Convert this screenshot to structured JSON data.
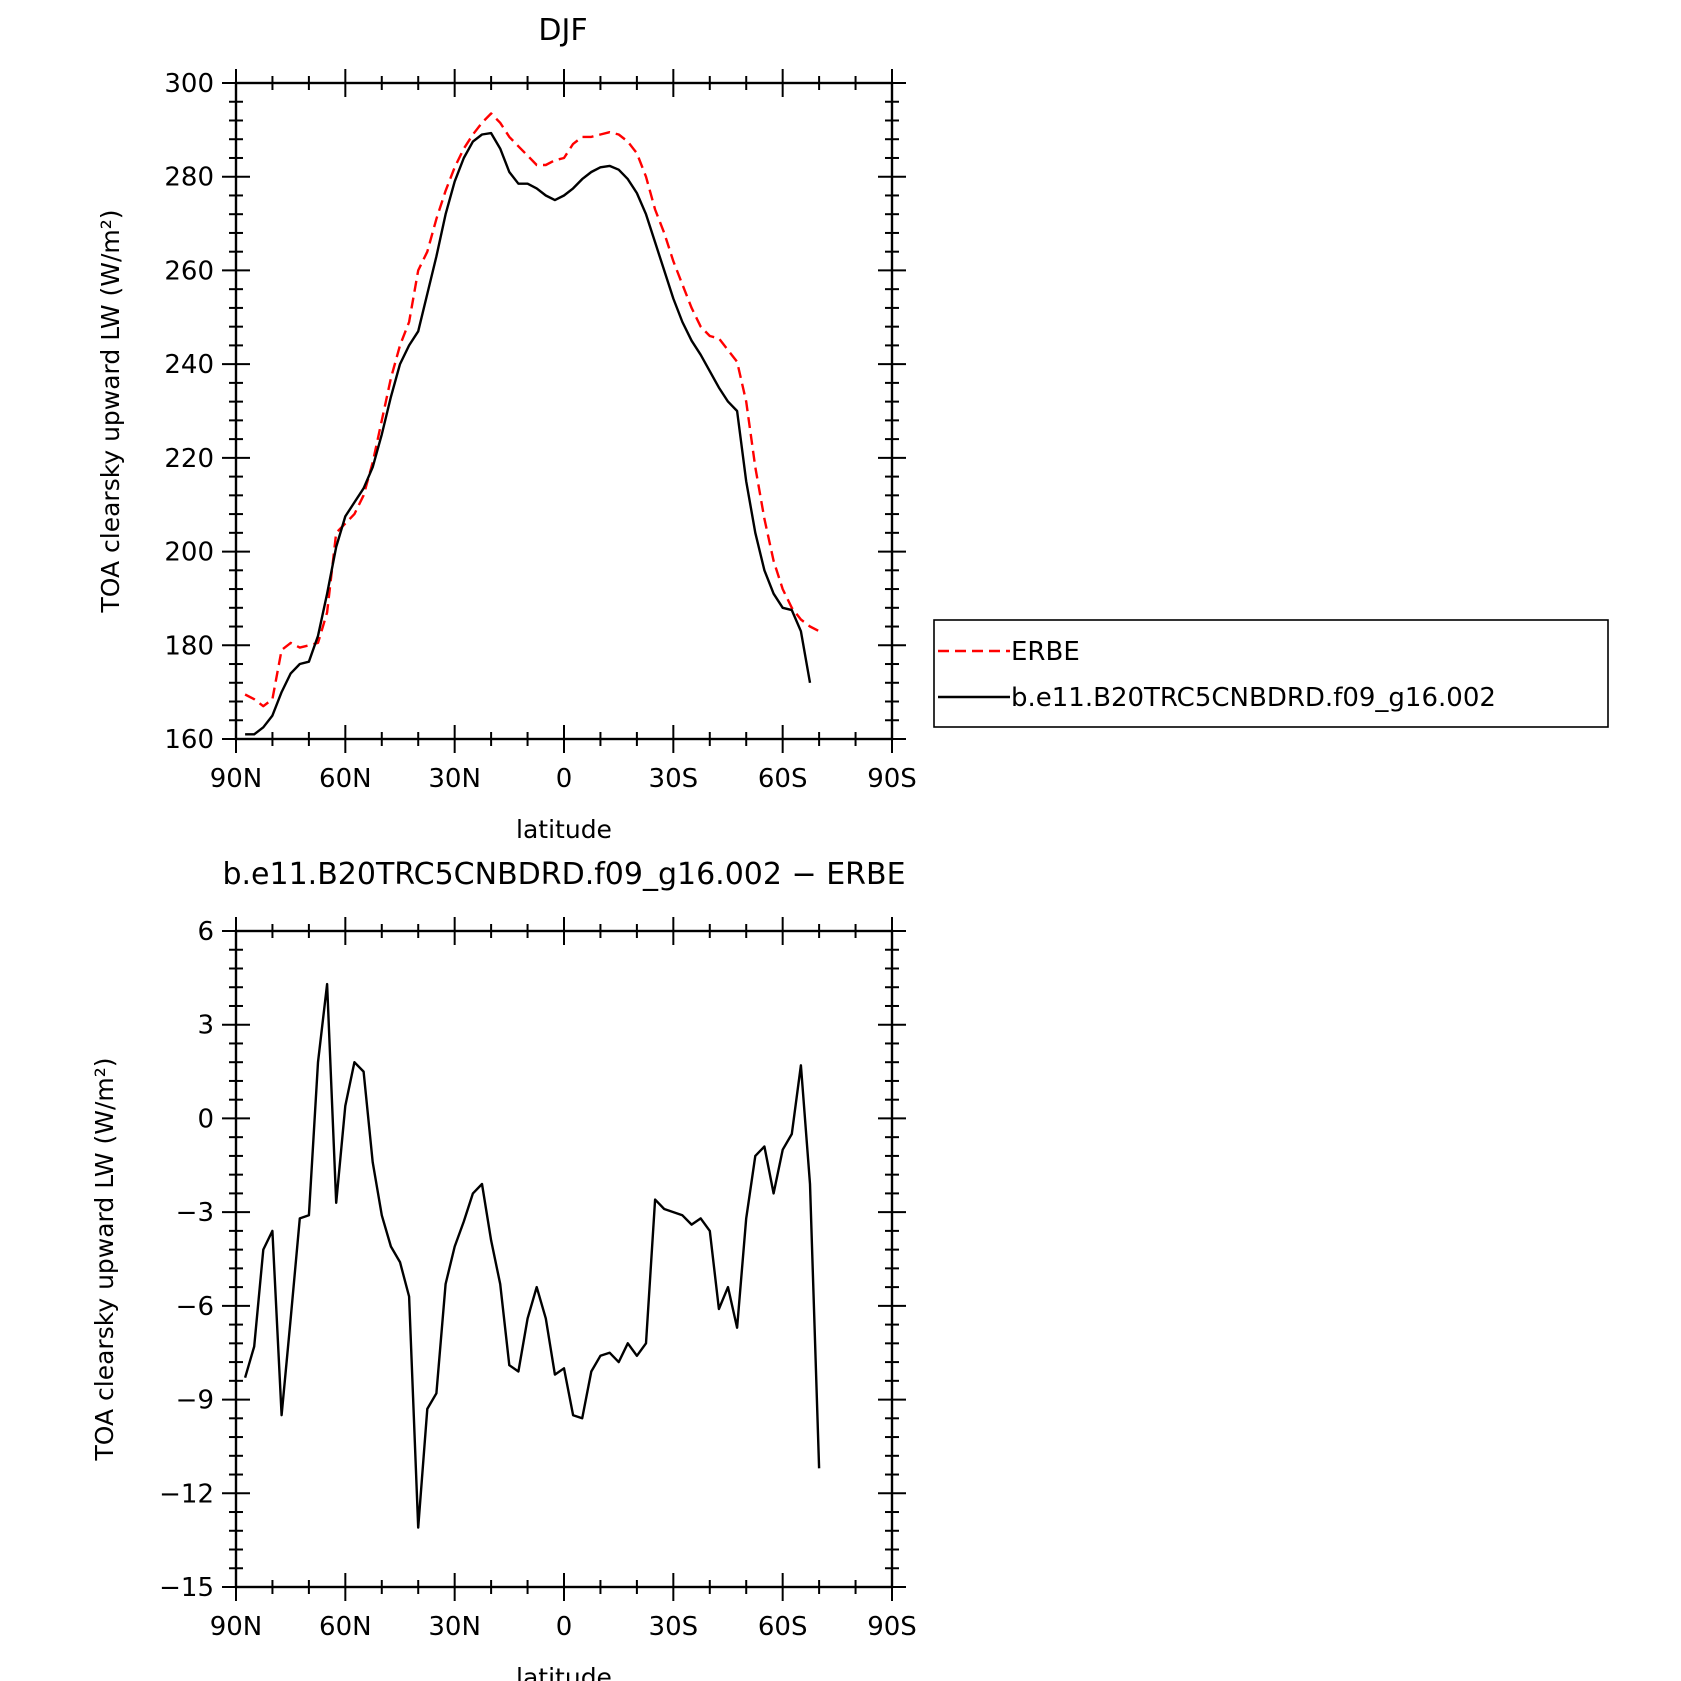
{
  "chart_data": [
    {
      "type": "line",
      "title": "DJF",
      "xlabel": "latitude",
      "ylabel": "TOA clearsky upward LW (W/m²)",
      "xlim": [
        90,
        -90
      ],
      "ylim": [
        160,
        300
      ],
      "yticks": [
        160,
        180,
        200,
        220,
        240,
        260,
        280,
        300
      ],
      "xticks": [
        {
          "value": 90,
          "label": "90N"
        },
        {
          "value": 60,
          "label": "60N"
        },
        {
          "value": 30,
          "label": "30N"
        },
        {
          "value": 0,
          "label": "0"
        },
        {
          "value": -30,
          "label": "30S"
        },
        {
          "value": -60,
          "label": "60S"
        },
        {
          "value": -90,
          "label": "90S"
        }
      ],
      "legend_position": "right",
      "series": [
        {
          "name": "ERBE",
          "color": "#ff0000",
          "dash": "dashed",
          "points": [
            [
              87.5,
              169.5
            ],
            [
              85,
              168.5
            ],
            [
              82.5,
              167
            ],
            [
              80,
              168.5
            ],
            [
              77.5,
              179
            ],
            [
              75,
              180.5
            ],
            [
              72.5,
              179.5
            ],
            [
              70,
              180
            ],
            [
              67.5,
              180.5
            ],
            [
              65,
              187
            ],
            [
              62.5,
              204
            ],
            [
              60,
              206
            ],
            [
              57.5,
              208
            ],
            [
              55,
              212
            ],
            [
              52.5,
              219
            ],
            [
              50,
              228
            ],
            [
              47.5,
              237
            ],
            [
              45,
              244
            ],
            [
              42.5,
              249
            ],
            [
              40,
              260
            ],
            [
              37.5,
              264
            ],
            [
              35,
              271
            ],
            [
              32.5,
              277
            ],
            [
              30,
              282
            ],
            [
              27.5,
              286
            ],
            [
              25,
              289
            ],
            [
              22.5,
              291.5
            ],
            [
              20,
              293.5
            ],
            [
              17.5,
              291.5
            ],
            [
              15,
              288.5
            ],
            [
              12.5,
              286.5
            ],
            [
              10,
              284.5
            ],
            [
              7.5,
              282.5
            ],
            [
              5,
              282.5
            ],
            [
              2.5,
              283.5
            ],
            [
              0,
              284
            ],
            [
              -2.5,
              287
            ],
            [
              -5,
              288.5
            ],
            [
              -7.5,
              288.5
            ],
            [
              -10,
              289
            ],
            [
              -12.5,
              289.5
            ],
            [
              -15,
              289
            ],
            [
              -17.5,
              287.5
            ],
            [
              -20,
              285
            ],
            [
              -22.5,
              280
            ],
            [
              -25,
              273
            ],
            [
              -27.5,
              268
            ],
            [
              -30,
              262
            ],
            [
              -32.5,
              257
            ],
            [
              -35,
              252
            ],
            [
              -37.5,
              248
            ],
            [
              -40,
              246
            ],
            [
              -42.5,
              245.5
            ],
            [
              -45,
              243
            ],
            [
              -47.5,
              240.5
            ],
            [
              -50,
              232
            ],
            [
              -52.5,
              218
            ],
            [
              -55,
              207
            ],
            [
              -57.5,
              198
            ],
            [
              -60,
              192
            ],
            [
              -62.5,
              188
            ],
            [
              -65,
              185.5
            ],
            [
              -67.5,
              184
            ],
            [
              -70,
              183
            ]
          ]
        },
        {
          "name": "b.e11.B20TRC5CNBDRD.f09_g16.002",
          "color": "#000000",
          "dash": "solid",
          "points": [
            [
              87.5,
              161
            ],
            [
              85,
              161
            ],
            [
              82.5,
              162.5
            ],
            [
              80,
              165
            ],
            [
              77.5,
              170
            ],
            [
              75,
              174
            ],
            [
              72.5,
              176
            ],
            [
              70,
              176.5
            ],
            [
              67.5,
              182
            ],
            [
              65,
              191
            ],
            [
              62.5,
              201
            ],
            [
              60,
              207.5
            ],
            [
              57.5,
              210.5
            ],
            [
              55,
              213.5
            ],
            [
              52.5,
              218
            ],
            [
              50,
              225
            ],
            [
              47.5,
              233
            ],
            [
              45,
              240
            ],
            [
              42.5,
              244
            ],
            [
              40,
              247
            ],
            [
              37.5,
              255
            ],
            [
              35,
              263
            ],
            [
              32.5,
              272
            ],
            [
              30,
              279
            ],
            [
              27.5,
              284
            ],
            [
              25,
              287.5
            ],
            [
              22.5,
              289
            ],
            [
              20,
              289.3
            ],
            [
              17.5,
              286
            ],
            [
              15,
              281
            ],
            [
              12.5,
              278.5
            ],
            [
              10,
              278.5
            ],
            [
              7.5,
              277.5
            ],
            [
              5,
              276
            ],
            [
              2.5,
              275
            ],
            [
              0,
              276
            ],
            [
              -2.5,
              277.5
            ],
            [
              -5,
              279.5
            ],
            [
              -7.5,
              281
            ],
            [
              -10,
              282
            ],
            [
              -12.5,
              282.3
            ],
            [
              -15,
              281.5
            ],
            [
              -17.5,
              279.5
            ],
            [
              -20,
              276.5
            ],
            [
              -22.5,
              272
            ],
            [
              -25,
              266
            ],
            [
              -27.5,
              260
            ],
            [
              -30,
              254
            ],
            [
              -32.5,
              249
            ],
            [
              -35,
              245
            ],
            [
              -37.5,
              242
            ],
            [
              -40,
              238.5
            ],
            [
              -42.5,
              235
            ],
            [
              -45,
              232
            ],
            [
              -47.5,
              230
            ],
            [
              -50,
              215
            ],
            [
              -52.5,
              204
            ],
            [
              -55,
              196
            ],
            [
              -57.5,
              191
            ],
            [
              -60,
              188
            ],
            [
              -62.5,
              187.5
            ],
            [
              -65,
              183
            ],
            [
              -67.5,
              172
            ]
          ]
        }
      ]
    },
    {
      "type": "line",
      "title": "b.e11.B20TRC5CNBDRD.f09_g16.002 − ERBE",
      "xlabel": "latitude",
      "ylabel": "TOA clearsky upward LW (W/m²)",
      "xlim": [
        90,
        -90
      ],
      "ylim": [
        -15,
        6
      ],
      "yticks": [
        -15,
        -12,
        -9,
        -6,
        -3,
        0,
        3,
        6
      ],
      "ytick_labels": [
        "−15",
        "−12",
        "−9",
        "−6",
        "−3",
        "0",
        "3",
        "6"
      ],
      "xticks": [
        {
          "value": 90,
          "label": "90N"
        },
        {
          "value": 60,
          "label": "60N"
        },
        {
          "value": 30,
          "label": "30N"
        },
        {
          "value": 0,
          "label": "0"
        },
        {
          "value": -30,
          "label": "30S"
        },
        {
          "value": -60,
          "label": "60S"
        },
        {
          "value": -90,
          "label": "90S"
        }
      ],
      "series": [
        {
          "color": "#000000",
          "dash": "solid",
          "points": [
            [
              87.5,
              -8.3
            ],
            [
              85,
              -7.3
            ],
            [
              82.5,
              -4.2
            ],
            [
              80,
              -3.6
            ],
            [
              77.5,
              -9.5
            ],
            [
              75,
              -6.4
            ],
            [
              72.5,
              -3.2
            ],
            [
              70,
              -3.1
            ],
            [
              67.5,
              1.8
            ],
            [
              65,
              4.3
            ],
            [
              62.5,
              -2.7
            ],
            [
              60,
              0.4
            ],
            [
              57.5,
              1.8
            ],
            [
              55,
              1.5
            ],
            [
              52.5,
              -1.4
            ],
            [
              50,
              -3.1
            ],
            [
              47.5,
              -4.1
            ],
            [
              45,
              -4.6
            ],
            [
              42.5,
              -5.7
            ],
            [
              40,
              -13.1
            ],
            [
              37.5,
              -9.3
            ],
            [
              35,
              -8.8
            ],
            [
              32.5,
              -5.3
            ],
            [
              30,
              -4.1
            ],
            [
              27.5,
              -3.3
            ],
            [
              25,
              -2.4
            ],
            [
              22.5,
              -2.1
            ],
            [
              20,
              -3.9
            ],
            [
              17.5,
              -5.3
            ],
            [
              15,
              -7.9
            ],
            [
              12.5,
              -8.1
            ],
            [
              10,
              -6.4
            ],
            [
              7.5,
              -5.4
            ],
            [
              5,
              -6.4
            ],
            [
              2.5,
              -8.2
            ],
            [
              0,
              -8.0
            ],
            [
              -2.5,
              -9.5
            ],
            [
              -5,
              -9.6
            ],
            [
              -7.5,
              -8.1
            ],
            [
              -10,
              -7.6
            ],
            [
              -12.5,
              -7.5
            ],
            [
              -15,
              -7.8
            ],
            [
              -17.5,
              -7.2
            ],
            [
              -20,
              -7.6
            ],
            [
              -22.5,
              -7.2
            ],
            [
              -25,
              -2.6
            ],
            [
              -27.5,
              -2.9
            ],
            [
              -30,
              -3.0
            ],
            [
              -32.5,
              -3.1
            ],
            [
              -35,
              -3.4
            ],
            [
              -37.5,
              -3.2
            ],
            [
              -40,
              -3.6
            ],
            [
              -42.5,
              -6.1
            ],
            [
              -45,
              -5.4
            ],
            [
              -47.5,
              -6.7
            ],
            [
              -50,
              -3.2
            ],
            [
              -52.5,
              -1.2
            ],
            [
              -55,
              -0.9
            ],
            [
              -57.5,
              -2.4
            ],
            [
              -60,
              -1.0
            ],
            [
              -62.5,
              -0.5
            ],
            [
              -65,
              1.7
            ],
            [
              -67.5,
              -2.1
            ],
            [
              -70,
              -11.2
            ]
          ]
        }
      ]
    }
  ]
}
